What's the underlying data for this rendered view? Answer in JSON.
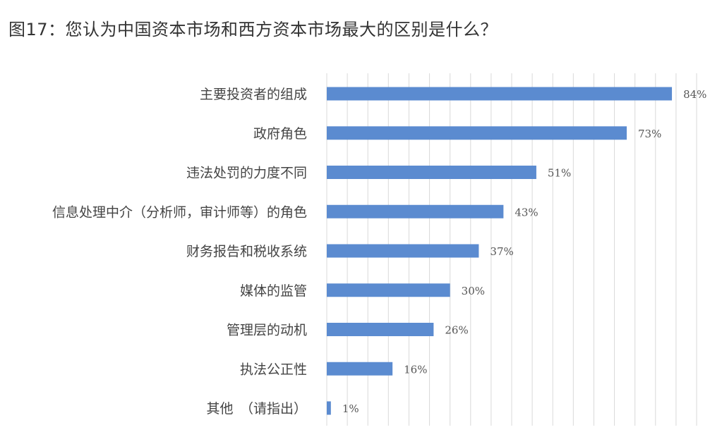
{
  "title": "图17：您认为中国资本市场和西方资本市场最大的区别是什么？",
  "chart_data": {
    "type": "bar",
    "orientation": "horizontal",
    "title": "图17：您认为中国资本市场和西方资本市场最大的区别是什么？",
    "categories": [
      "主要投资者的组成",
      "政府角色",
      "违法处罚的力度不同",
      "信息处理中介（分析师，审计师等）的角色",
      "财务报告和税收系统",
      "媒体的监管",
      "管理层的动机",
      "执法公正性",
      "其他　（请指出）"
    ],
    "values": [
      84,
      73,
      51,
      43,
      37,
      30,
      26,
      16,
      1
    ],
    "value_labels": [
      "84%",
      "73%",
      "51%",
      "43%",
      "37%",
      "30%",
      "26%",
      "16%",
      "1%"
    ],
    "xlim": [
      0,
      90
    ],
    "grid": true,
    "bar_color": "#5b8bd0"
  }
}
